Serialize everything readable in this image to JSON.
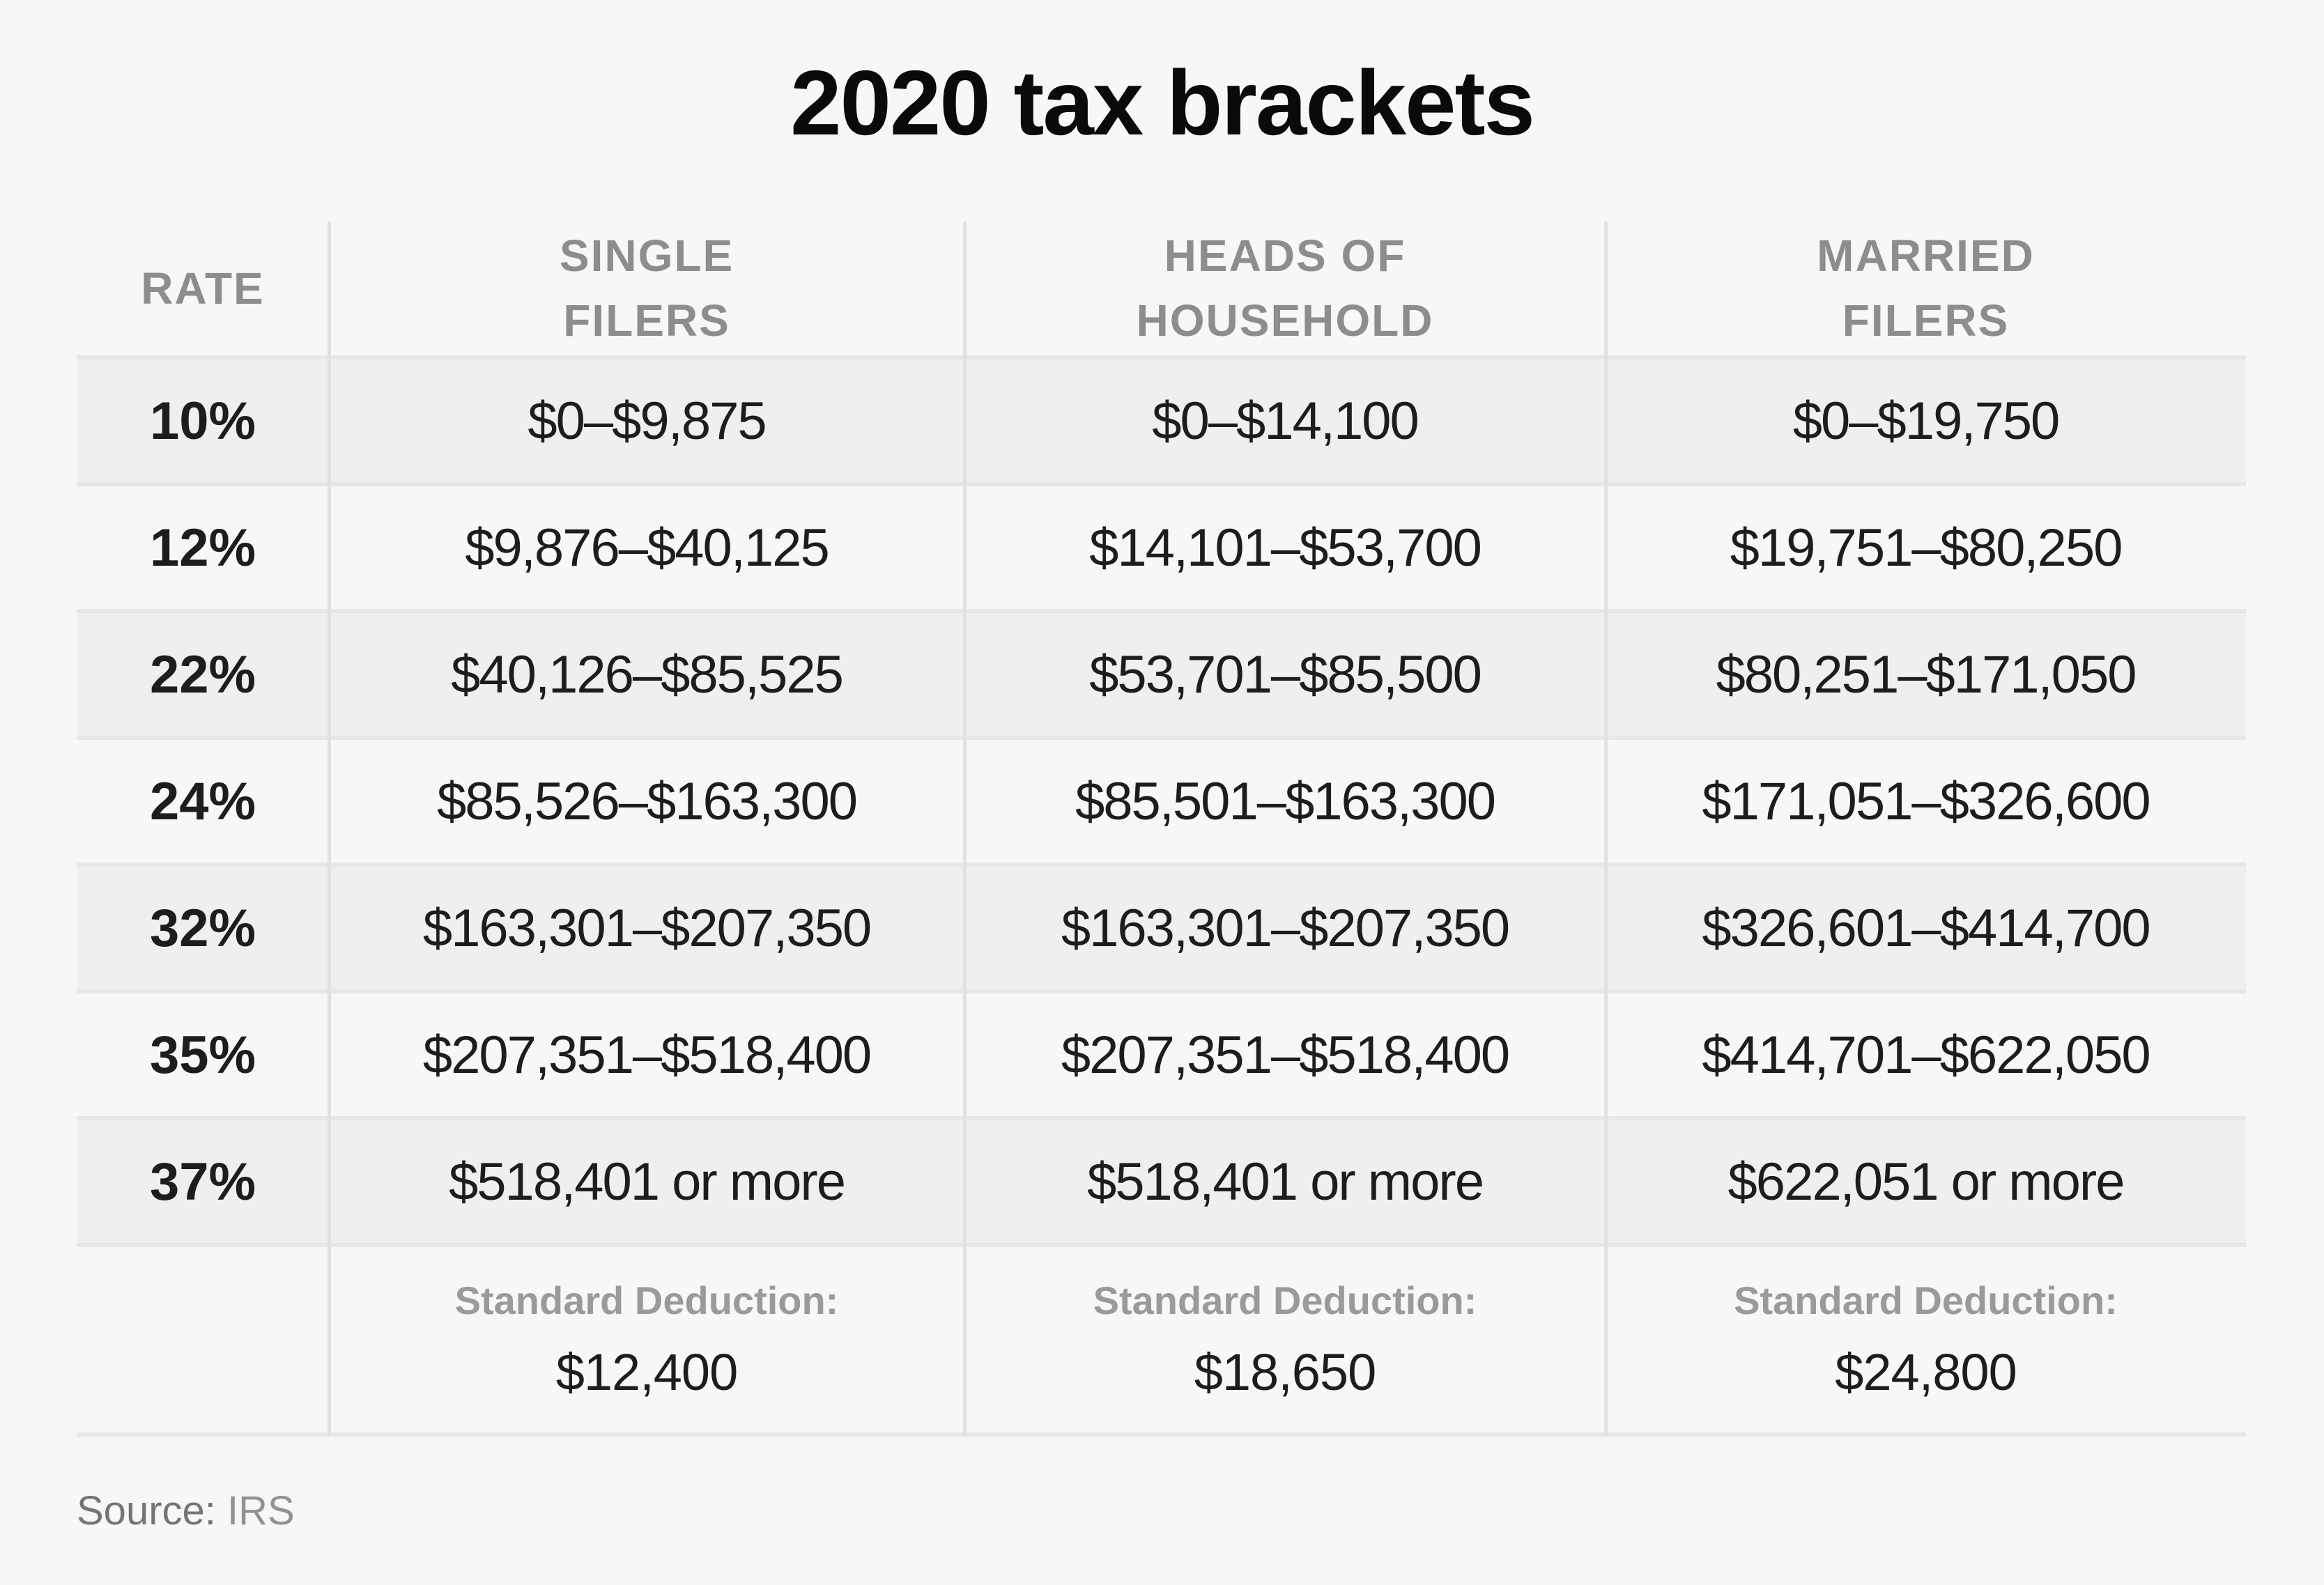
{
  "title": "2020 tax brackets",
  "columns": [
    {
      "id": "rate",
      "label_lines": [
        "RATE"
      ]
    },
    {
      "id": "single",
      "label_lines": [
        "SINGLE",
        "FILERS"
      ]
    },
    {
      "id": "hoh",
      "label_lines": [
        "HEADS OF",
        "HOUSEHOLD"
      ]
    },
    {
      "id": "married",
      "label_lines": [
        "MARRIED",
        "FILERS"
      ]
    }
  ],
  "rows": [
    {
      "rate": "10%",
      "single": "$0–$9,875",
      "hoh": "$0–$14,100",
      "married": "$0–$19,750"
    },
    {
      "rate": "12%",
      "single": "$9,876–$40,125",
      "hoh": "$14,101–$53,700",
      "married": "$19,751–$80,250"
    },
    {
      "rate": "22%",
      "single": "$40,126–$85,525",
      "hoh": "$53,701–$85,500",
      "married": "$80,251–$171,050"
    },
    {
      "rate": "24%",
      "single": "$85,526–$163,300",
      "hoh": "$85,501–$163,300",
      "married": "$171,051–$326,600"
    },
    {
      "rate": "32%",
      "single": "$163,301–$207,350",
      "hoh": "$163,301–$207,350",
      "married": "$326,601–$414,700"
    },
    {
      "rate": "35%",
      "single": "$207,351–$518,400",
      "hoh": "$207,351–$518,400",
      "married": "$414,701–$622,050"
    },
    {
      "rate": "37%",
      "single": "$518,401 or more",
      "hoh": "$518,401 or more",
      "married": "$622,051 or more"
    }
  ],
  "standard_deduction": {
    "label": "Standard Deduction:",
    "single": "$12,400",
    "hoh": "$18,650",
    "married": "$24,800"
  },
  "source": {
    "label": "Source:",
    "value": "IRS"
  },
  "colors": {
    "page_background": "#f7f7f7",
    "shaded_row": "#efefef",
    "separator_line": "#e7e7e7",
    "column_line": "#e1e1e1",
    "header_text": "#8d8d8d",
    "data_text": "#1d1d1d",
    "deduction_label_text": "#9a9a9a",
    "source_text": "#757575"
  },
  "chart_data": {
    "type": "table",
    "title": "2020 tax brackets",
    "columns": [
      "RATE",
      "SINGLE FILERS",
      "HEADS OF HOUSEHOLD",
      "MARRIED FILERS"
    ],
    "rows": [
      [
        "10%",
        "$0–$9,875",
        "$0–$14,100",
        "$0–$19,750"
      ],
      [
        "12%",
        "$9,876–$40,125",
        "$14,101–$53,700",
        "$19,751–$80,250"
      ],
      [
        "22%",
        "$40,126–$85,525",
        "$53,701–$85,500",
        "$80,251–$171,050"
      ],
      [
        "24%",
        "$85,526–$163,300",
        "$85,501–$163,300",
        "$171,051–$326,600"
      ],
      [
        "32%",
        "$163,301–$207,350",
        "$163,301–$207,350",
        "$326,601–$414,700"
      ],
      [
        "35%",
        "$207,351–$518,400",
        "$207,351–$518,400",
        "$414,701–$622,050"
      ],
      [
        "37%",
        "$518,401 or more",
        "$518,401 or more",
        "$622,051 or more"
      ],
      [
        "",
        "Standard Deduction: $12,400",
        "Standard Deduction: $18,650",
        "Standard Deduction: $24,800"
      ]
    ],
    "source": "Source: IRS",
    "layout": {
      "shaded_rows": [
        0,
        2,
        4,
        6
      ],
      "legend": false,
      "grid": "column-separators-and-row-lines"
    }
  }
}
